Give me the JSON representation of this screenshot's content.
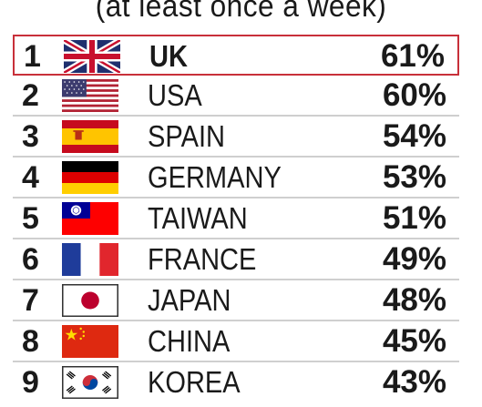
{
  "subtitle": "(at least once a week)",
  "chart_data": {
    "type": "table",
    "title": "",
    "subtitle": "(at least once a week)",
    "unit": "%",
    "highlighted_rank": 1,
    "rows": [
      {
        "rank": "1",
        "country": "UK",
        "value": 61,
        "label": "61%",
        "flag_icon": "uk-flag-icon"
      },
      {
        "rank": "2",
        "country": "USA",
        "value": 60,
        "label": "60%",
        "flag_icon": "usa-flag-icon"
      },
      {
        "rank": "3",
        "country": "SPAIN",
        "value": 54,
        "label": "54%",
        "flag_icon": "spain-flag-icon"
      },
      {
        "rank": "4",
        "country": "GERMANY",
        "value": 53,
        "label": "53%",
        "flag_icon": "germany-flag-icon"
      },
      {
        "rank": "5",
        "country": "TAIWAN",
        "value": 51,
        "label": "51%",
        "flag_icon": "taiwan-flag-icon"
      },
      {
        "rank": "6",
        "country": "FRANCE",
        "value": 49,
        "label": "49%",
        "flag_icon": "france-flag-icon"
      },
      {
        "rank": "7",
        "country": "JAPAN",
        "value": 48,
        "label": "48%",
        "flag_icon": "japan-flag-icon"
      },
      {
        "rank": "8",
        "country": "CHINA",
        "value": 45,
        "label": "45%",
        "flag_icon": "china-flag-icon"
      },
      {
        "rank": "9",
        "country": "KOREA",
        "value": 43,
        "label": "43%",
        "flag_icon": "korea-flag-icon"
      }
    ]
  },
  "colors": {
    "highlight_border": "#c8303a",
    "row_divider": "#cfcfcf",
    "text": "#1a1a1a"
  }
}
